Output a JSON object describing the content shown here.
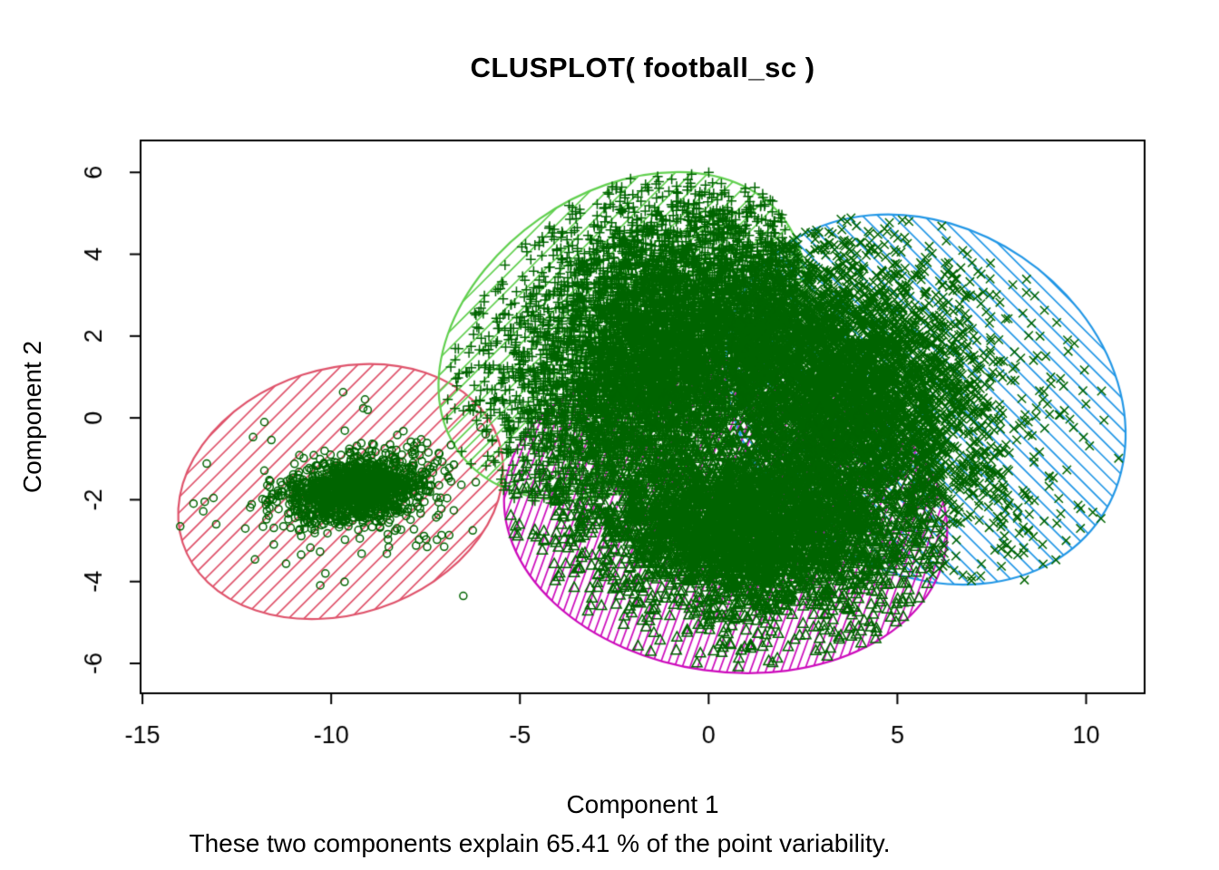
{
  "chart_data": {
    "type": "scatter",
    "title": "CLUSPLOT( football_sc )",
    "xlabel": "Component 1",
    "ylabel": "Component 2",
    "subtitle": "These two components explain 65.41 % of the point variability.",
    "explained_variance_pct": 65.41,
    "xlim": [
      -15.05,
      11.55
    ],
    "ylim": [
      -6.73,
      6.78
    ],
    "x_ticks": [
      -15,
      -10,
      -5,
      0,
      5,
      10
    ],
    "y_ticks": [
      -6,
      -4,
      -2,
      0,
      2,
      4,
      6
    ],
    "grid": false,
    "legend": "none",
    "background": "#ffffff",
    "axis_color": "#000000",
    "point_color": "#006400",
    "clusters": [
      {
        "id": 1,
        "marker": "circle",
        "marker_size": 4,
        "color": "#DF536B",
        "n_points_est": 1400,
        "center": [
          -9.35,
          -1.8
        ],
        "sd_core": [
          0.95,
          0.4
        ],
        "sd_tail": [
          2.1,
          1.0
        ],
        "tail_frac": 0.1,
        "tilt_deg": 10,
        "outliers": [
          [
            -14.0,
            -2.65
          ],
          [
            -6.5,
            -4.35
          ],
          [
            -6.25,
            -2.75
          ]
        ],
        "ellipse": {
          "cx": -9.75,
          "cy": -1.8,
          "rx": 4.4,
          "ry": 3.0,
          "angle_deg": 18,
          "hatch_angle_deg": 45,
          "hatch_gap": 12
        }
      },
      {
        "id": 2,
        "marker": "plus",
        "marker_size": 5.5,
        "color": "#61D04F",
        "n_points_est": 6500,
        "center": [
          -1.0,
          1.7
        ],
        "sd_core": [
          2.1,
          1.5
        ],
        "sd_tail": [
          3.4,
          2.5
        ],
        "tail_frac": 0.25,
        "tilt_deg": 28,
        "outliers": [
          [
            -1.35,
            5.9
          ],
          [
            -0.55,
            5.65
          ],
          [
            -4.85,
            4.25
          ]
        ],
        "ellipse": {
          "cx": -2.3,
          "cy": 2.0,
          "rx": 5.3,
          "ry": 3.5,
          "angle_deg": 35,
          "hatch_angle_deg": 45,
          "hatch_gap": 13
        }
      },
      {
        "id": 3,
        "marker": "cross",
        "marker_size": 6,
        "color": "#2297E6",
        "n_points_est": 5000,
        "center": [
          3.4,
          0.7
        ],
        "sd_core": [
          2.0,
          1.5
        ],
        "sd_tail": [
          3.3,
          2.3
        ],
        "tail_frac": 0.25,
        "tilt_deg": -25,
        "outliers": [
          [
            9.85,
            -2.7
          ],
          [
            8.35,
            -3.3
          ],
          [
            8.6,
            -2.9
          ]
        ],
        "ellipse": {
          "cx": 5.75,
          "cy": 0.45,
          "rx": 5.6,
          "ry": 4.2,
          "angle_deg": -34,
          "hatch_angle_deg": 135,
          "hatch_gap": 12
        }
      },
      {
        "id": 4,
        "marker": "triangle",
        "marker_size": 5,
        "color": "#CD0BBC",
        "n_points_est": 4000,
        "center": [
          1.0,
          -2.6
        ],
        "sd_core": [
          2.0,
          1.05
        ],
        "sd_tail": [
          3.2,
          1.7
        ],
        "tail_frac": 0.25,
        "tilt_deg": -5,
        "outliers": [
          [
            0.95,
            -5.6
          ],
          [
            1.5,
            -5.3
          ],
          [
            2.95,
            -5.65
          ],
          [
            -0.2,
            -5.15
          ]
        ],
        "ellipse": {
          "cx": 0.45,
          "cy": -2.4,
          "rx": 5.9,
          "ry": 3.8,
          "angle_deg": -8,
          "hatch_angle_deg": 70,
          "hatch_gap": 8
        }
      }
    ]
  }
}
